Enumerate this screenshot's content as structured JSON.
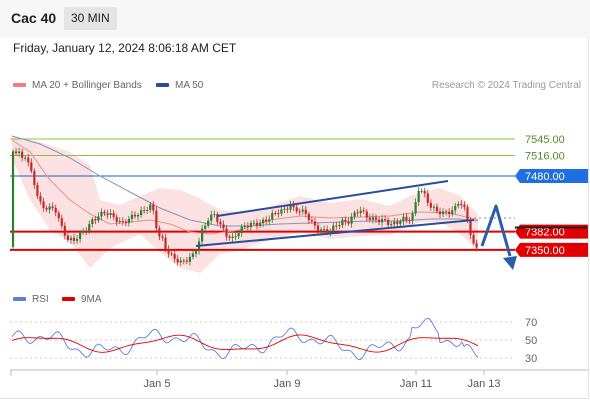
{
  "header": {
    "symbol": "Cac 40",
    "timeframe": "30 MIN"
  },
  "datetime": "Friday, January 12, 2024 8:06:18 AM CET",
  "legend": {
    "ma20": {
      "label": "MA 20 + Bollinger Bands",
      "color": "#f08080"
    },
    "ma50": {
      "label": "MA 50",
      "color": "#2a4d9b"
    }
  },
  "credit": "Research © 2024 Trading Central",
  "rsi_legend": {
    "rsi": {
      "label": "RSI",
      "color": "#5b7fdc"
    },
    "ma9": {
      "label": "9MA",
      "color": "#e00000"
    }
  },
  "colors": {
    "up": "#2e7d32",
    "down": "#c62828",
    "support": "#e00000",
    "pivot": "#1565c0",
    "resistance": "#8bc34a"
  },
  "chart_data": {
    "type": "candlestick",
    "ylim": [
      7330,
      7570
    ],
    "x_ticks": [
      "Jan 5",
      "Jan 9",
      "Jan 11",
      "Jan 13"
    ],
    "levels": [
      {
        "value": 7545.0,
        "label": "7545.00",
        "kind": "resistance"
      },
      {
        "value": 7516.0,
        "label": "7516.00",
        "kind": "resistance"
      },
      {
        "value": 7480.0,
        "label": "7480.00",
        "kind": "pivot"
      },
      {
        "value": 7382.0,
        "label": "7382.00",
        "kind": "support"
      },
      {
        "value": 7350.0,
        "label": "7350.00",
        "kind": "support"
      }
    ],
    "rsi": {
      "levels": [
        "70",
        "50",
        "30"
      ],
      "range": [
        20,
        80
      ]
    }
  }
}
